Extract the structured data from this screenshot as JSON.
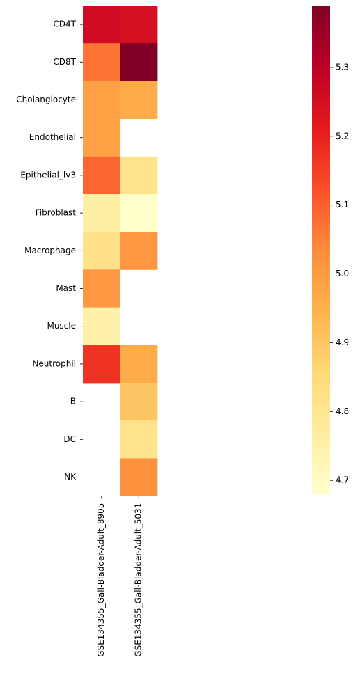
{
  "chart_data": {
    "type": "heatmap",
    "title": "",
    "xlabel": "",
    "ylabel": "",
    "rows": [
      "CD4T",
      "CD8T",
      "Cholangiocyte",
      "Endothelial",
      "Epithelial_lv3",
      "Fibroblast",
      "Macrophage",
      "Mast",
      "Muscle",
      "Neutrophil",
      "B",
      "DC",
      "NK"
    ],
    "columns": [
      "GSE134355_Gall-Bladder-Adult_8905",
      "GSE134355_Gall-Bladder-Adult_5031"
    ],
    "values": [
      [
        5.26,
        5.25
      ],
      [
        5.07,
        5.39
      ],
      [
        4.99,
        4.96
      ],
      [
        4.99,
        null
      ],
      [
        5.09,
        4.81
      ],
      [
        4.76,
        4.68
      ],
      [
        4.82,
        5.01
      ],
      [
        5.01,
        null
      ],
      [
        4.75,
        null
      ],
      [
        5.17,
        4.96
      ],
      [
        null,
        4.9
      ],
      [
        null,
        4.81
      ],
      [
        null,
        5.02
      ]
    ],
    "colorbar": {
      "min": 4.68,
      "max": 5.39,
      "ticks": [
        4.7,
        4.8,
        4.9,
        5.0,
        5.1,
        5.2,
        5.3
      ],
      "tick_labels": [
        "4.7",
        "4.8",
        "4.9",
        "5.0",
        "5.1",
        "5.2",
        "5.3"
      ],
      "colormap": "YlOrRd",
      "colormap_stops": [
        "#ffffcc",
        "#ffeda0",
        "#fed976",
        "#feb24c",
        "#fd8d3c",
        "#fc4e2a",
        "#e31a1c",
        "#bd0026",
        "#800026"
      ]
    },
    "legend": "colorbar right"
  }
}
